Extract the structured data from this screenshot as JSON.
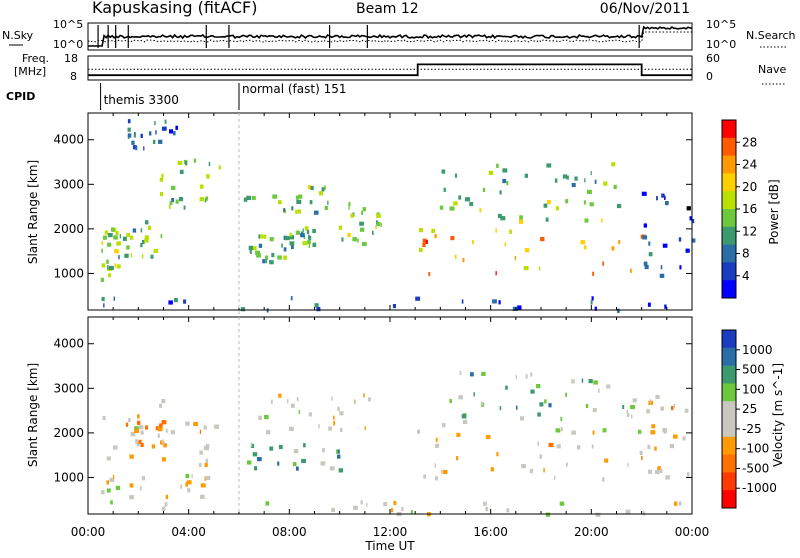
{
  "header": {
    "station": "Kapuskasing (fitACF)",
    "beam": "Beam 12",
    "date": "06/Nov/2011"
  },
  "summary_panels": {
    "nsky": {
      "left_label": "N.Sky",
      "right_label": "N.Search",
      "left_ticks": [
        "10^5",
        "10^0"
      ],
      "right_ticks": [
        "10^5",
        "10^0"
      ]
    },
    "freq": {
      "left_label_1": "Freq.",
      "left_label_2": "[MHz]",
      "right_label": "Nave",
      "left_ticks": [
        "18",
        "8"
      ],
      "right_ticks": [
        "60",
        "0"
      ],
      "freq_step": {
        "before_hour": 13.1,
        "after_hour": 22,
        "low_level": 0.2,
        "high_level": 0.65,
        "nave_level": 0.45
      }
    },
    "cpid": {
      "label": "CPID",
      "segments": [
        {
          "label": "themis 3300",
          "start_hour": 0.5
        },
        {
          "label": "normal (fast) 151",
          "start_hour": 6.0
        }
      ]
    }
  },
  "x_axis": {
    "label": "Time UT",
    "range_hours": [
      0,
      24
    ],
    "ticks": [
      "00:00",
      "04:00",
      "08:00",
      "12:00",
      "16:00",
      "20:00",
      "00:00"
    ],
    "tick_hours": [
      0,
      4,
      8,
      12,
      16,
      20,
      24
    ]
  },
  "chart_data": [
    {
      "type": "heatmap",
      "quantity": "Power",
      "ylabel": "Slant Range [km]",
      "yticks": [
        1000,
        2000,
        3000,
        4000
      ],
      "ylim": [
        180,
        4600
      ],
      "colorbar": {
        "label": "Power [dB]",
        "ticks": [
          "28",
          "24",
          "20",
          "16",
          "12",
          "8",
          "4"
        ],
        "colors": [
          "#ff0000",
          "#ff5a00",
          "#ff9a00",
          "#ffd000",
          "#b8e000",
          "#6cc83c",
          "#3c9a6e",
          "#2a6ea8",
          "#1a3cc0",
          "#0000ff"
        ]
      },
      "regions": [
        {
          "t0": 0.5,
          "t1": 1.2,
          "r0": 900,
          "r1": 2100,
          "level": 0.5
        },
        {
          "t0": 1.2,
          "t1": 3.0,
          "r0": 1400,
          "r1": 2300,
          "level": 0.45
        },
        {
          "t0": 2.8,
          "t1": 5.3,
          "r0": 2500,
          "r1": 3600,
          "level": 0.45
        },
        {
          "t0": 6.0,
          "t1": 9.5,
          "r0": 2400,
          "r1": 3000,
          "level": 0.45
        },
        {
          "t0": 9.5,
          "t1": 11.8,
          "r0": 1700,
          "r1": 2700,
          "level": 0.45
        },
        {
          "t0": 6.3,
          "t1": 8.0,
          "r0": 1200,
          "r1": 1900,
          "level": 0.4
        },
        {
          "t0": 8.0,
          "t1": 9.0,
          "r0": 1600,
          "r1": 2100,
          "level": 0.4
        },
        {
          "t0": 13.0,
          "t1": 22.0,
          "r0": 1000,
          "r1": 1900,
          "level": 0.75
        },
        {
          "t0": 13.0,
          "t1": 22.0,
          "r0": 1900,
          "r1": 2800,
          "level": 0.5
        },
        {
          "t0": 14.0,
          "t1": 21.5,
          "r0": 2800,
          "r1": 3500,
          "level": 0.4
        },
        {
          "t0": 22.0,
          "t1": 24.0,
          "r0": 900,
          "r1": 3000,
          "level": 0.15
        },
        {
          "t0": 0.5,
          "t1": 24.0,
          "r0": 200,
          "r1": 500,
          "level": 0.2
        },
        {
          "t0": 1.5,
          "t1": 3.5,
          "r0": 3800,
          "r1": 4500,
          "level": 0.2
        }
      ]
    },
    {
      "type": "heatmap",
      "quantity": "Velocity",
      "ylabel": "Slant Range [km]",
      "yticks": [
        1000,
        2000,
        3000,
        4000
      ],
      "ylim": [
        180,
        4600
      ],
      "colorbar": {
        "label": "Velocity [m s^-1]",
        "ticks": [
          "1000",
          "500",
          "100",
          "25",
          "-25",
          "-100",
          "-500",
          "-1000"
        ],
        "colors": [
          "#1a3cc0",
          "#2a6ea8",
          "#3c9a6e",
          "#6cc83c",
          "#c8c8c0",
          "#c8c8c0",
          "#ff9a00",
          "#ff7000",
          "#ff3a00",
          "#ff0000"
        ]
      },
      "regions": [
        {
          "t0": 0.5,
          "t1": 5.3,
          "r0": 1300,
          "r1": 2800,
          "level": 0.45
        },
        {
          "t0": 6.0,
          "t1": 11.8,
          "r0": 2000,
          "r1": 2900,
          "level": 0.45
        },
        {
          "t0": 13.0,
          "t1": 22.0,
          "r0": 900,
          "r1": 2000,
          "level": 0.45
        },
        {
          "t0": 13.0,
          "t1": 22.0,
          "r0": 2000,
          "r1": 2900,
          "level": 0.55
        },
        {
          "t0": 14.5,
          "t1": 21.5,
          "r0": 2500,
          "r1": 3400,
          "level": 0.65
        },
        {
          "t0": 6.3,
          "t1": 10.0,
          "r0": 1200,
          "r1": 1800,
          "level": 0.7
        },
        {
          "t0": 1.5,
          "t1": 3.0,
          "r0": 1700,
          "r1": 2300,
          "level": 0.3
        },
        {
          "t0": 22.0,
          "t1": 24.0,
          "r0": 1000,
          "r1": 2900,
          "level": 0.45
        },
        {
          "t0": 0.5,
          "t1": 24.0,
          "r0": 200,
          "r1": 500,
          "level": 0.5
        },
        {
          "t0": 0.5,
          "t1": 5.0,
          "r0": 600,
          "r1": 1100,
          "level": 0.45
        }
      ]
    }
  ]
}
